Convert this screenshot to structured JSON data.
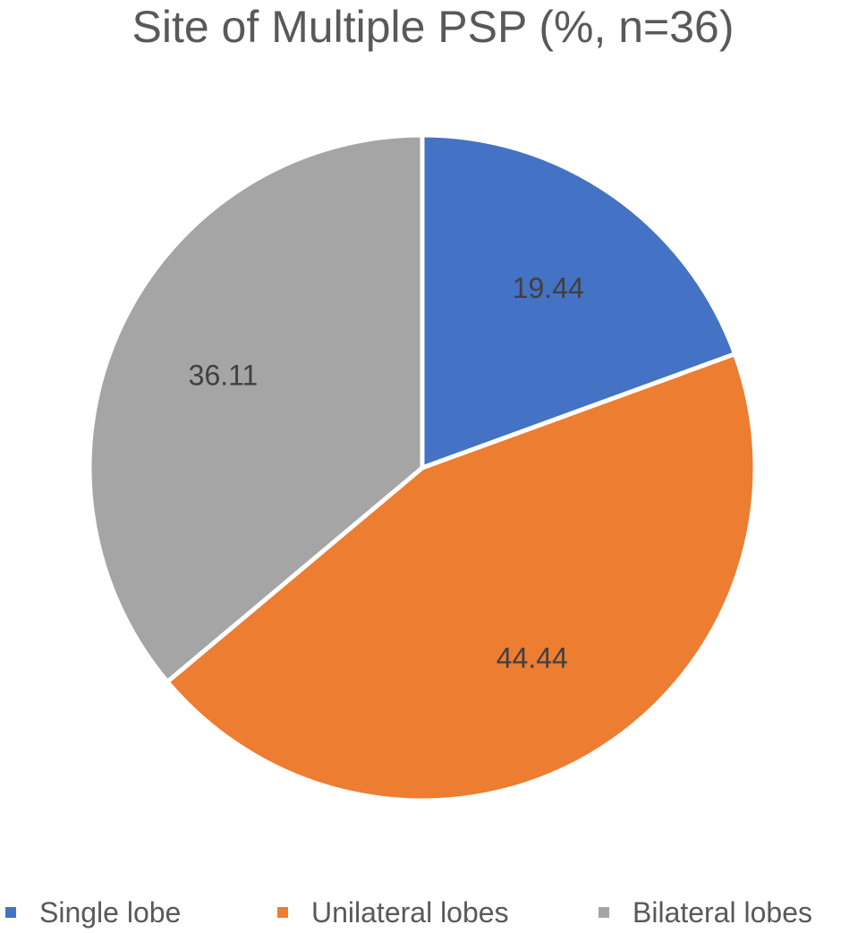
{
  "chart_data": {
    "type": "pie",
    "title": "Site of Multiple PSP (%, n=36)",
    "categories": [
      "Single lobe",
      "Unilateral lobes",
      "Bilateral lobes"
    ],
    "values": [
      19.44,
      44.44,
      36.11
    ],
    "data_labels": [
      "19.44",
      "44.44",
      "36.11"
    ],
    "colors": [
      "#4472C4",
      "#ED7D31",
      "#A5A5A5"
    ],
    "start_angle": "12 o'clock",
    "direction": "clockwise",
    "legend_position": "bottom"
  }
}
